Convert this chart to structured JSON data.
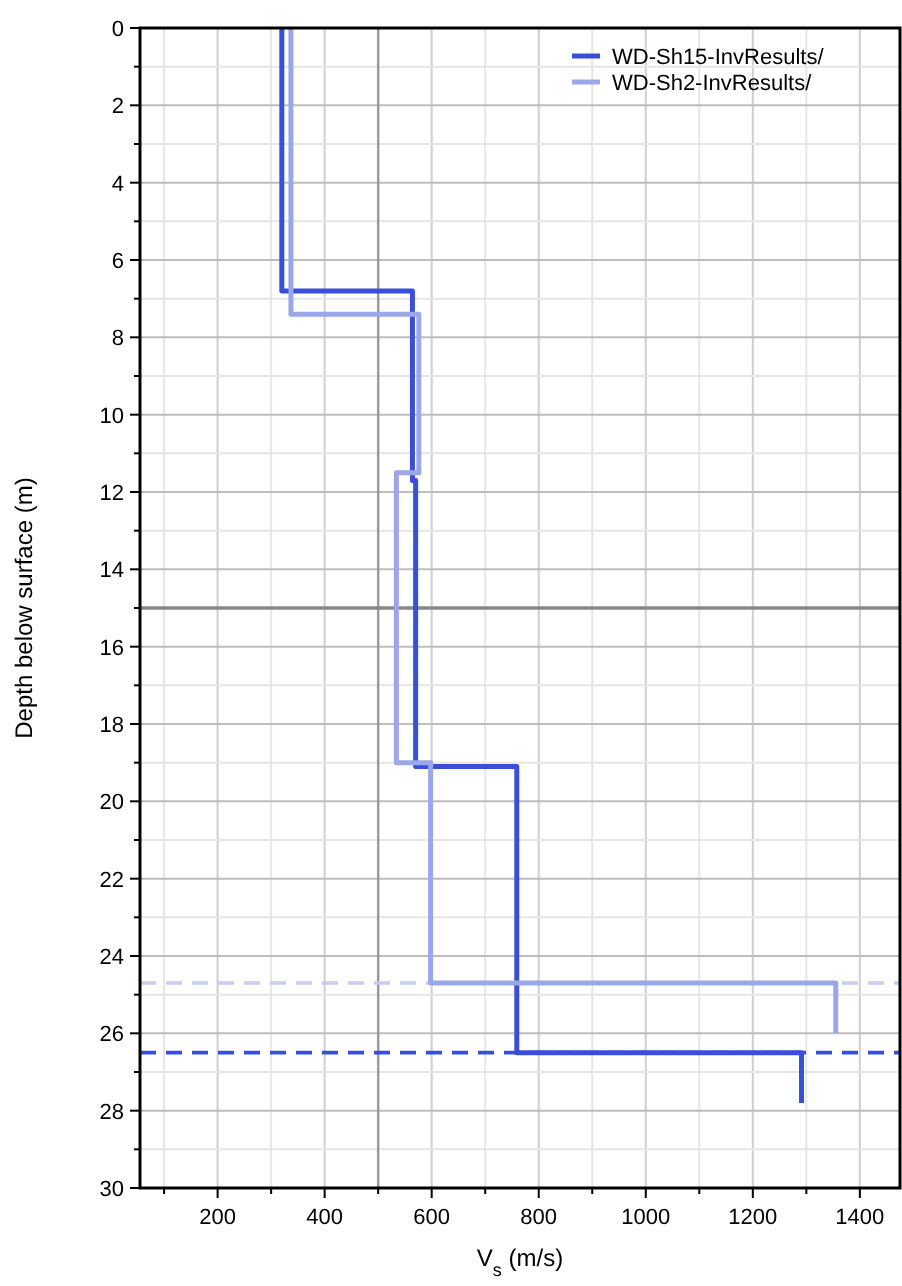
{
  "chart_data": {
    "type": "line",
    "xlabel": "V$_{s}$ (m/s)",
    "ylabel": "Depth below surface (m)",
    "xlim": [
      55,
      1475
    ],
    "ylim": [
      30,
      0
    ],
    "xticks": [
      {
        "value": 100,
        "label": null
      },
      200,
      {
        "value": 300,
        "label": null
      },
      400,
      {
        "value": 500,
        "label": null
      },
      600,
      {
        "value": 700,
        "label": null
      },
      800,
      {
        "value": 900,
        "label": null
      },
      1000,
      {
        "value": 1100,
        "label": null
      },
      1200,
      {
        "value": 1300,
        "label": null
      },
      1400
    ],
    "yticks": [
      0,
      {
        "value": 1,
        "label": null
      },
      2,
      {
        "value": 3,
        "label": null
      },
      4,
      {
        "value": 5,
        "label": null
      },
      6,
      {
        "value": 7,
        "label": null
      },
      8,
      {
        "value": 9,
        "label": null
      },
      10,
      {
        "value": 11,
        "label": null
      },
      12,
      {
        "value": 13,
        "label": null
      },
      14,
      {
        "value": 15,
        "label": null
      },
      16,
      {
        "value": 17,
        "label": null
      },
      18,
      {
        "value": 19,
        "label": null
      },
      20,
      {
        "value": 21,
        "label": null
      },
      22,
      {
        "value": 23,
        "label": null
      },
      24,
      {
        "value": 25,
        "label": null
      },
      26,
      {
        "value": 27,
        "label": null
      },
      28,
      {
        "value": 29,
        "label": null
      },
      30
    ],
    "grid": true,
    "legend": "top right",
    "line_style": "solid",
    "series": [
      {
        "name": "WD-Sh15-InvResults/",
        "color": "#3a4fd8",
        "x": [
          320,
          320,
          564,
          564,
          570,
          570,
          759,
          759,
          1291,
          1291
        ],
        "values": [
          0,
          6.8,
          6.8,
          11.7,
          11.7,
          19.1,
          19.1,
          26.5,
          26.5,
          27.8
        ]
      },
      {
        "name": "WD-Sh2-InvResults/",
        "color": "#9aa8e8",
        "x": [
          337,
          337,
          576,
          576,
          534,
          534,
          598,
          598,
          1355,
          1355
        ],
        "values": [
          0,
          7.4,
          7.4,
          11.5,
          11.5,
          19.0,
          19.0,
          24.7,
          24.7,
          26.0
        ]
      }
    ],
    "ref_lines": [
      {
        "axis": "x",
        "value": 500,
        "color": "#999999",
        "line_style": "solid"
      },
      {
        "axis": "y",
        "value": 15,
        "color": "#888888",
        "line_style": "solid"
      },
      {
        "axis": "y",
        "value": 24.7,
        "color": "#c5cdf2",
        "line_style": "dashed"
      },
      {
        "axis": "y",
        "value": 26.5,
        "color": "#3a4fd8",
        "line_style": "dashed"
      }
    ]
  }
}
